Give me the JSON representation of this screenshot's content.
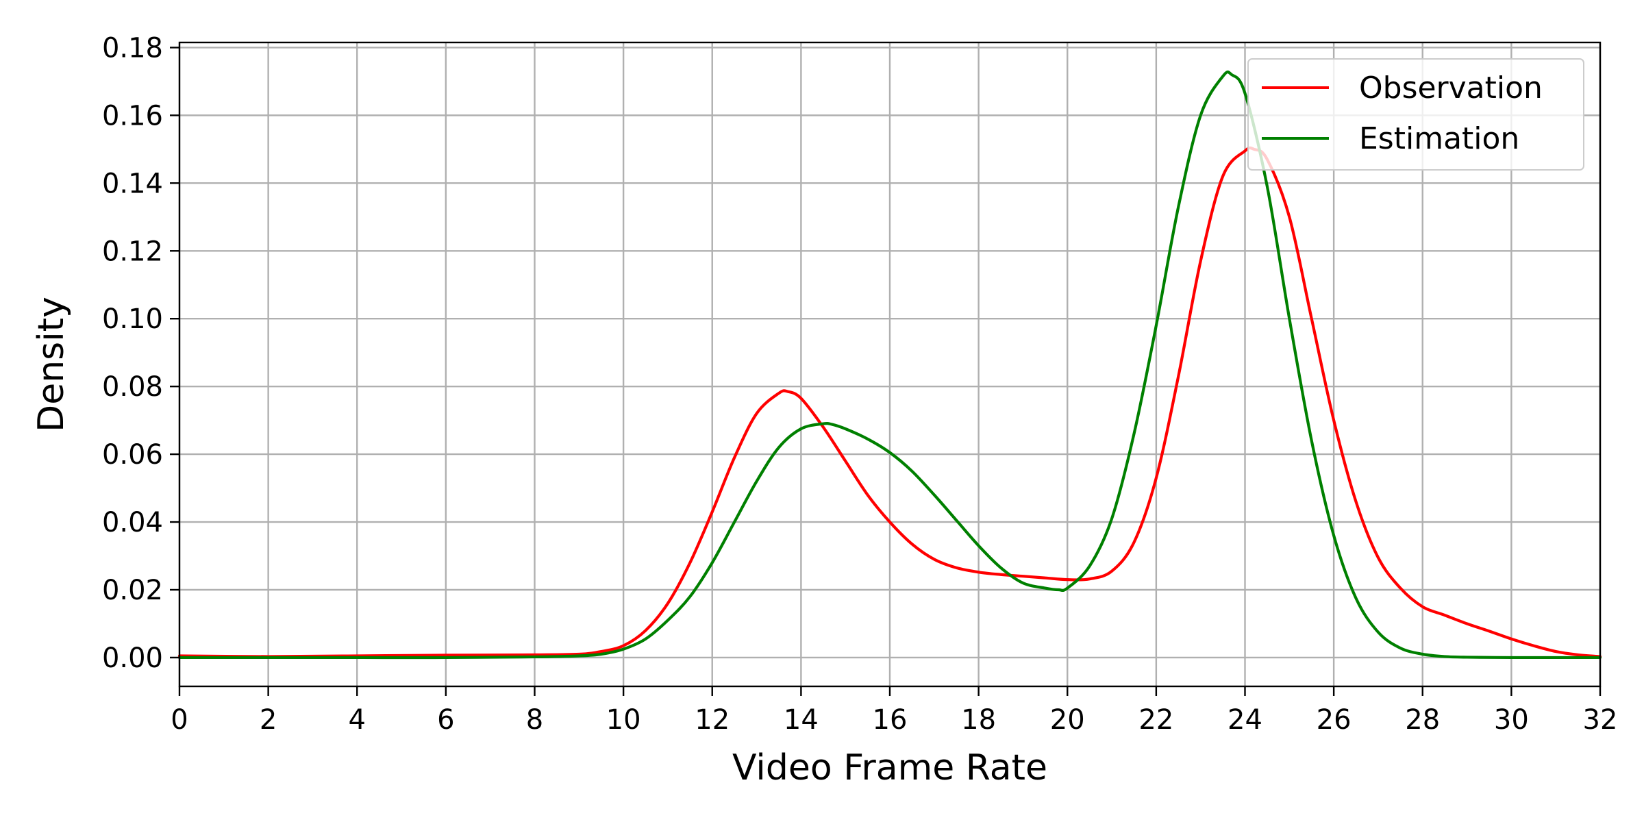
{
  "chart_data": {
    "type": "line",
    "title": "",
    "xlabel": "Video Frame Rate",
    "ylabel": "Density",
    "xlim": [
      0,
      32
    ],
    "ylim": [
      -0.0085,
      0.1815
    ],
    "xticks": [
      0,
      2,
      4,
      6,
      8,
      10,
      12,
      14,
      16,
      18,
      20,
      22,
      24,
      26,
      28,
      30,
      32
    ],
    "yticks": [
      0.0,
      0.02,
      0.04,
      0.06,
      0.08,
      0.1,
      0.12,
      0.14,
      0.16,
      0.18
    ],
    "ytick_labels": [
      "0.00",
      "0.02",
      "0.04",
      "0.06",
      "0.08",
      "0.10",
      "0.12",
      "0.14",
      "0.16",
      "0.18"
    ],
    "grid": true,
    "legend_position": "top-right",
    "series": [
      {
        "name": "Observation",
        "color": "#ff0000",
        "x": [
          0,
          2,
          4,
          6,
          8,
          9,
          9.5,
          10,
          10.5,
          11,
          11.5,
          12,
          12.5,
          13,
          13.5,
          13.7,
          14,
          14.5,
          15,
          15.5,
          16,
          16.5,
          17,
          17.5,
          18,
          18.5,
          19,
          19.5,
          20,
          20.5,
          21,
          21.5,
          22,
          22.5,
          23,
          23.5,
          24,
          24.2,
          24.5,
          25,
          25.5,
          26,
          26.5,
          27,
          27.5,
          28,
          28.5,
          29,
          29.5,
          30,
          30.5,
          31,
          31.5,
          32
        ],
        "y": [
          0.0005,
          0.0003,
          0.0005,
          0.0007,
          0.0008,
          0.001,
          0.0018,
          0.0035,
          0.008,
          0.016,
          0.028,
          0.043,
          0.059,
          0.072,
          0.078,
          0.0785,
          0.0765,
          0.068,
          0.058,
          0.048,
          0.04,
          0.0335,
          0.029,
          0.0265,
          0.0252,
          0.0245,
          0.024,
          0.0235,
          0.023,
          0.0232,
          0.0255,
          0.034,
          0.053,
          0.083,
          0.117,
          0.142,
          0.1495,
          0.15,
          0.147,
          0.13,
          0.1,
          0.07,
          0.046,
          0.0295,
          0.0205,
          0.015,
          0.0125,
          0.01,
          0.0078,
          0.0055,
          0.0035,
          0.0018,
          0.0008,
          0.0003
        ]
      },
      {
        "name": "Estimation",
        "color": "#008000",
        "x": [
          0,
          2,
          4,
          6,
          8,
          9,
          9.5,
          10,
          10.5,
          11,
          11.5,
          12,
          12.5,
          13,
          13.5,
          14,
          14.5,
          14.7,
          15,
          15.5,
          16,
          16.5,
          17,
          17.5,
          18,
          18.5,
          19,
          19.5,
          19.8,
          20,
          20.5,
          21,
          21.5,
          22,
          22.5,
          23,
          23.5,
          23.7,
          24,
          24.5,
          25,
          25.5,
          26,
          26.5,
          27,
          27.5,
          28,
          28.5,
          29,
          30,
          31,
          32
        ],
        "y": [
          0.0,
          0.0,
          0.0,
          0.0,
          0.0002,
          0.0005,
          0.001,
          0.0025,
          0.0055,
          0.011,
          0.018,
          0.028,
          0.04,
          0.052,
          0.062,
          0.0675,
          0.069,
          0.0688,
          0.0675,
          0.0645,
          0.0605,
          0.055,
          0.048,
          0.0405,
          0.033,
          0.0265,
          0.022,
          0.0205,
          0.02,
          0.0205,
          0.027,
          0.041,
          0.066,
          0.098,
          0.133,
          0.16,
          0.1715,
          0.172,
          0.1665,
          0.139,
          0.1,
          0.064,
          0.036,
          0.0175,
          0.0075,
          0.0028,
          0.001,
          0.0003,
          0.0001,
          0.0,
          0.0,
          0.0
        ]
      }
    ]
  }
}
